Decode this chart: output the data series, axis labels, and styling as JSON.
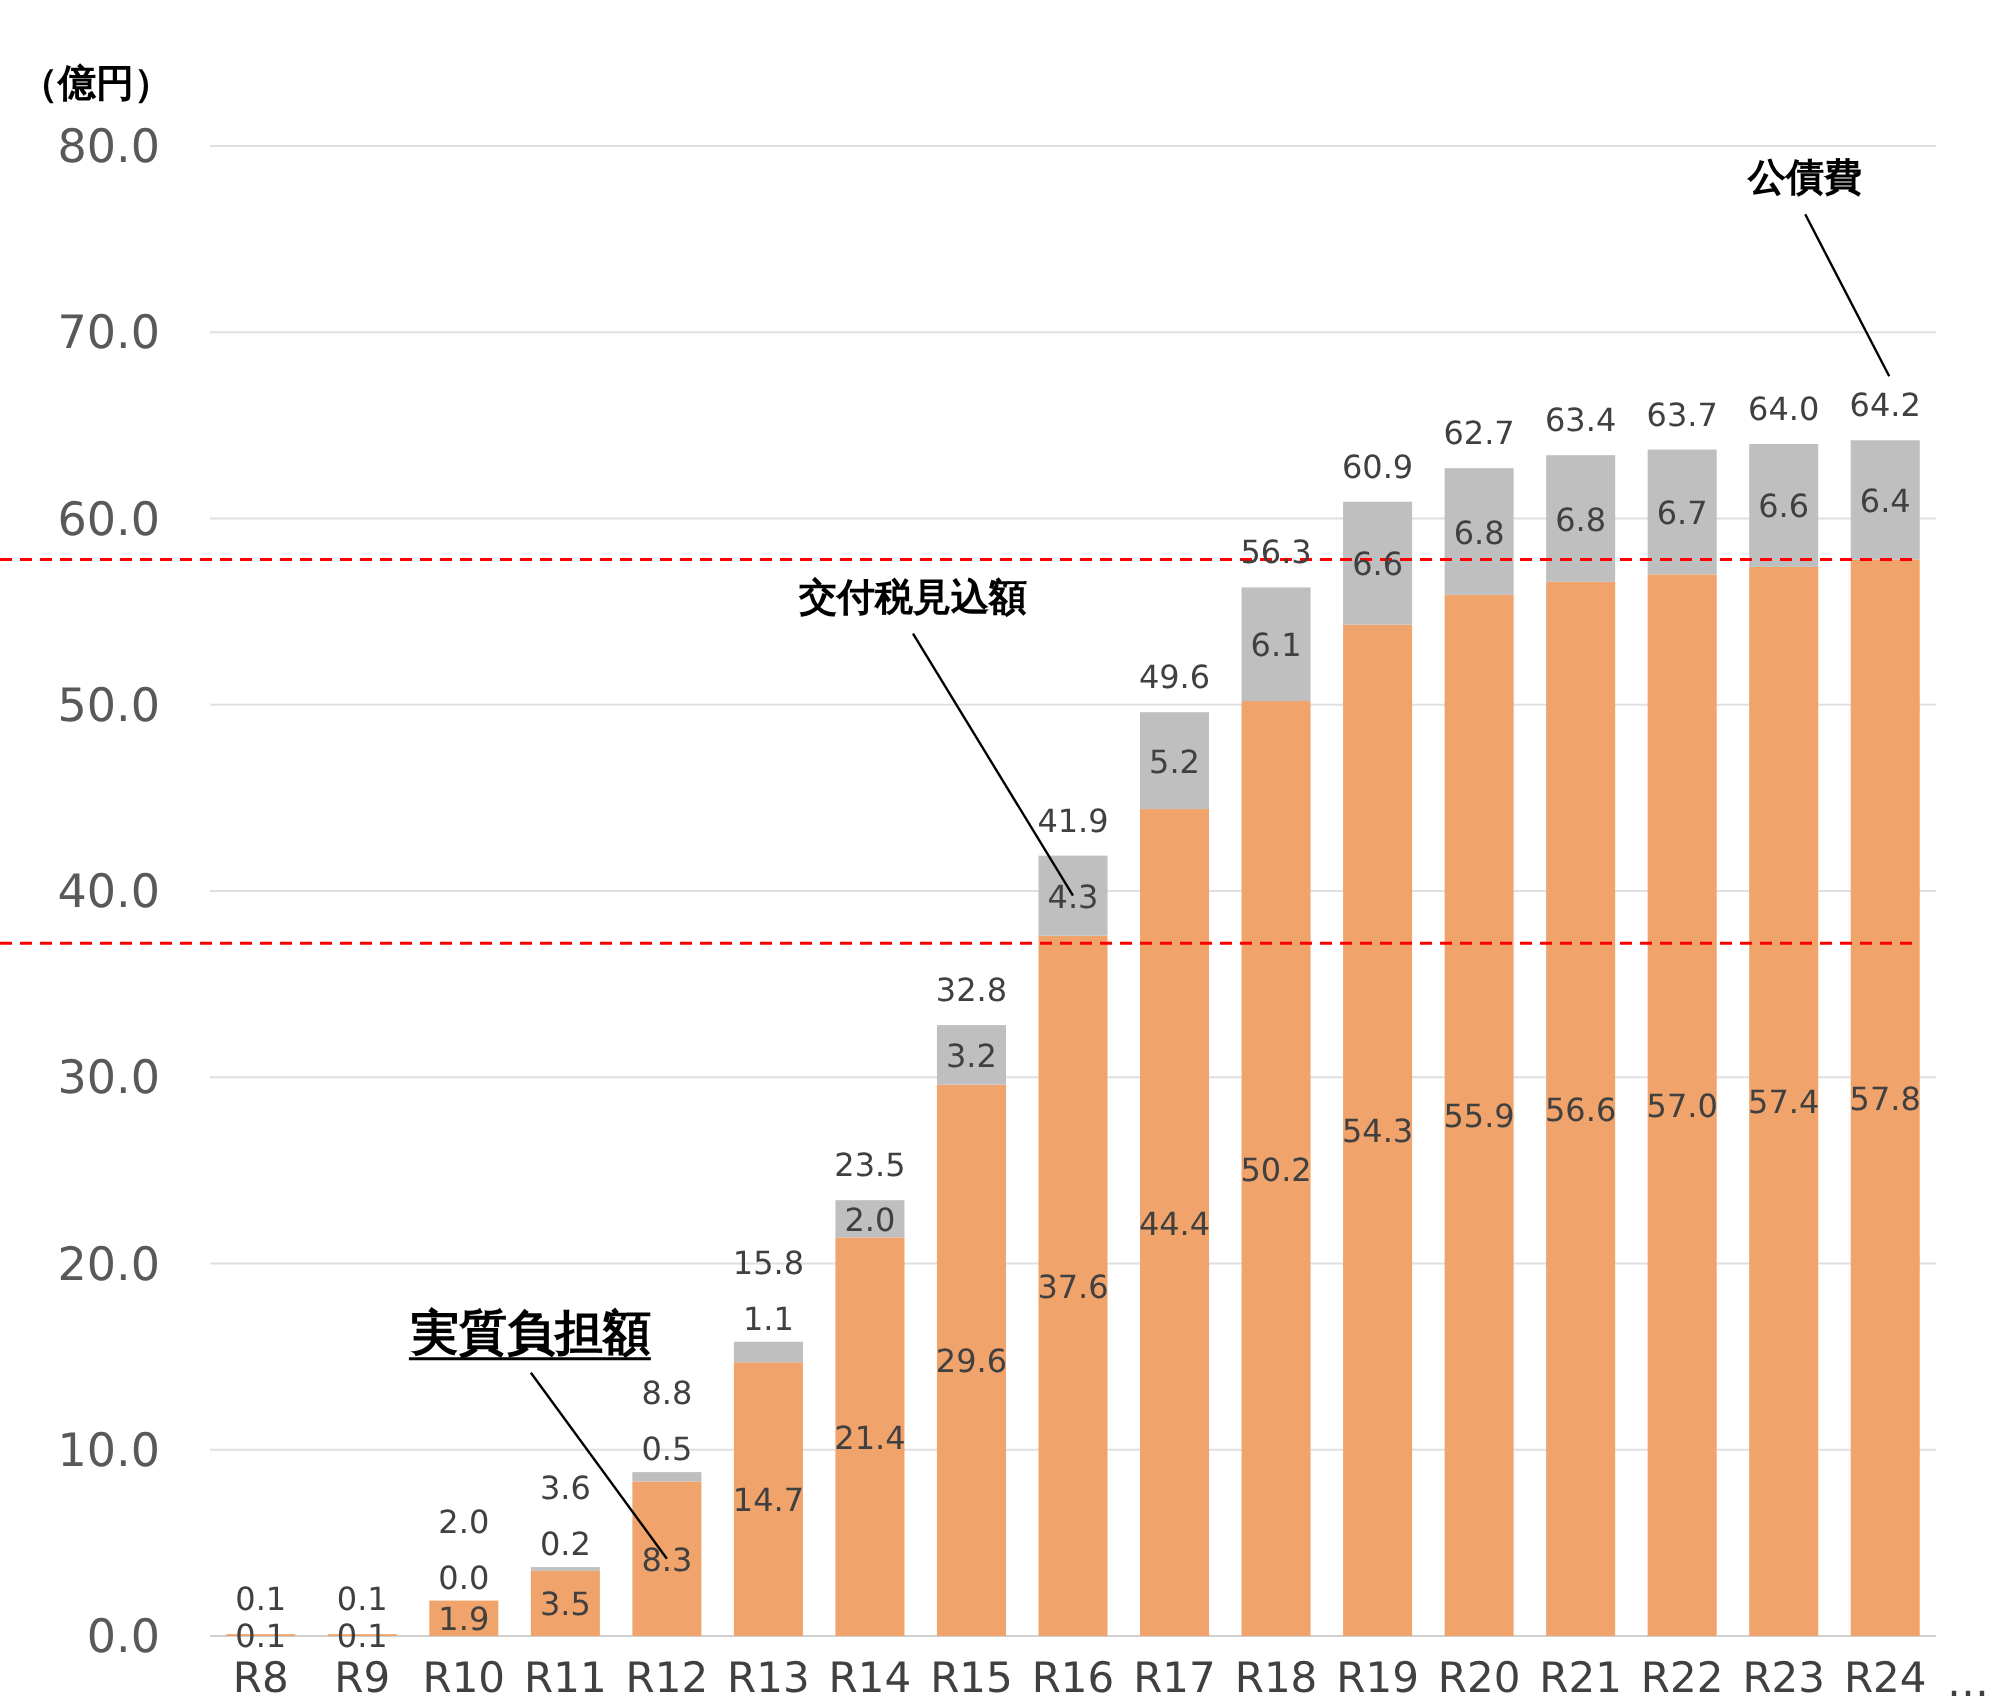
{
  "chart_data": {
    "type": "bar",
    "stacked": true,
    "ylabel": "（億円）",
    "categories": [
      "R8",
      "R9",
      "R10",
      "R11",
      "R12",
      "R13",
      "R14",
      "R15",
      "R16",
      "R17",
      "R18",
      "R19",
      "R20",
      "R21",
      "R22",
      "R23",
      "R24"
    ],
    "series": [
      {
        "name": "実質負担額",
        "color": "#f0a36b",
        "values": [
          0.1,
          0.1,
          1.9,
          3.5,
          8.3,
          14.7,
          21.4,
          29.6,
          37.6,
          44.4,
          50.2,
          54.3,
          55.9,
          56.6,
          57.0,
          57.4,
          57.8
        ],
        "value_labels": [
          "0.1",
          "0.1",
          "1.9",
          "3.5",
          "8.3",
          "14.7",
          "21.4",
          "29.6",
          "37.6",
          "44.4",
          "50.2",
          "54.3",
          "55.9",
          "56.6",
          "57.0",
          "57.4",
          "57.8"
        ]
      },
      {
        "name": "交付税見込額",
        "color": "#bfbfbf",
        "values": [
          null,
          null,
          0.0,
          0.2,
          0.5,
          1.1,
          2.0,
          3.2,
          4.3,
          5.2,
          6.1,
          6.6,
          6.8,
          6.8,
          6.7,
          6.6,
          6.4
        ],
        "value_labels": [
          null,
          null,
          "0.0",
          "0.2",
          "0.5",
          "1.1",
          "2.0",
          "3.2",
          "4.3",
          "5.2",
          "6.1",
          "6.6",
          "6.8",
          "6.8",
          "6.7",
          "6.6",
          "6.4"
        ]
      }
    ],
    "totals": [
      "0.1",
      "0.1",
      "2.0",
      "3.6",
      "8.8",
      "15.8",
      "23.5",
      "32.8",
      "41.9",
      "49.6",
      "56.3",
      "60.9",
      "62.7",
      "63.4",
      "63.7",
      "64.0",
      "64.2"
    ],
    "ylim": [
      0,
      80
    ],
    "yticks": [
      {
        "value": 0,
        "label": "0.0"
      },
      {
        "value": 10,
        "label": "10.0"
      },
      {
        "value": 20,
        "label": "20.0"
      },
      {
        "value": 30,
        "label": "30.0"
      },
      {
        "value": 40,
        "label": "40.0"
      },
      {
        "value": 50,
        "label": "50.0"
      },
      {
        "value": 60,
        "label": "60.0"
      },
      {
        "value": 70,
        "label": "70.0"
      },
      {
        "value": 80,
        "label": "80.0"
      }
    ],
    "grid": "y",
    "ref_lines": [
      {
        "axis": "y",
        "value": 57.8,
        "color": "#ff0000",
        "line_style": "dashed"
      },
      {
        "axis": "y",
        "value": 37.2,
        "color": "#ff0000",
        "line_style": "dashed"
      }
    ],
    "annotations": [
      "公債費",
      "…"
    ]
  }
}
